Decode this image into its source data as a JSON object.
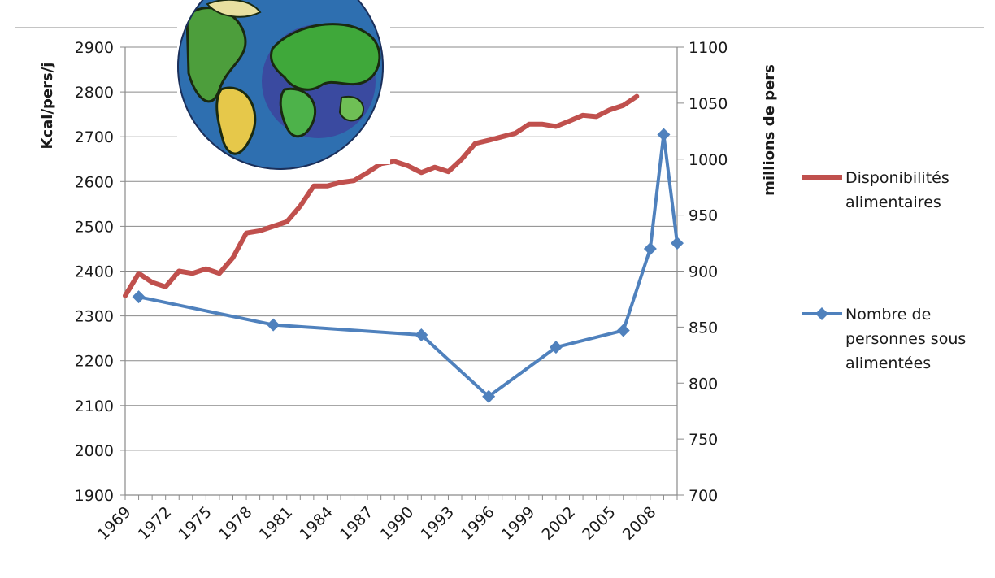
{
  "chart_data": {
    "type": "line",
    "x_ticks": [
      "1969",
      "1972",
      "1975",
      "1978",
      "1981",
      "1984",
      "1987",
      "1990",
      "1993",
      "1996",
      "1999",
      "2002",
      "2005",
      "2008"
    ],
    "xlim": [
      1969,
      2010
    ],
    "y_left": {
      "label": "Kcal/pers/j",
      "lim": [
        1900,
        2900
      ],
      "ticks": [
        "1900",
        "2000",
        "2100",
        "2200",
        "2300",
        "2400",
        "2500",
        "2600",
        "2700",
        "2800",
        "2900"
      ]
    },
    "y_right": {
      "label": "millions de pers",
      "lim": [
        700,
        1100
      ],
      "ticks": [
        "700",
        "750",
        "800",
        "850",
        "900",
        "950",
        "1000",
        "1050",
        "1100"
      ]
    },
    "grid": true,
    "legend_position": "right",
    "series": [
      {
        "name": "Disponibilités alimentaires",
        "axis": "left",
        "color": "#c0504d",
        "marker": "none",
        "x": [
          1969,
          1970,
          1971,
          1972,
          1973,
          1974,
          1975,
          1976,
          1977,
          1978,
          1979,
          1980,
          1981,
          1982,
          1983,
          1984,
          1985,
          1986,
          1987,
          1988,
          1989,
          1990,
          1991,
          1992,
          1993,
          1994,
          1995,
          1996,
          1997,
          1998,
          1999,
          2000,
          2001,
          2002,
          2003,
          2004,
          2005,
          2006,
          2007
        ],
        "y": [
          2345,
          2395,
          2375,
          2365,
          2400,
          2395,
          2405,
          2395,
          2430,
          2485,
          2490,
          2500,
          2510,
          2545,
          2590,
          2590,
          2598,
          2602,
          2620,
          2640,
          2645,
          2635,
          2620,
          2632,
          2622,
          2650,
          2685,
          2692,
          2700,
          2708,
          2728,
          2728,
          2723,
          2735,
          2748,
          2745,
          2760,
          2770,
          2790
        ]
      },
      {
        "name": "Nombre de personnes sous alimentées",
        "axis": "right",
        "color": "#4f81bd",
        "marker": "diamond",
        "x": [
          1970,
          1980,
          1991,
          1996,
          2001,
          2006,
          2008,
          2009,
          2010
        ],
        "y": [
          877,
          852,
          843,
          788,
          832,
          847,
          920,
          1022,
          925
        ]
      }
    ]
  },
  "legend": [
    {
      "lines": [
        "Disponibilités",
        "alimentaires"
      ],
      "color": "#c0504d",
      "marker": "none"
    },
    {
      "lines": [
        "Nombre de",
        "personnes sous",
        "alimentées"
      ],
      "color": "#4f81bd",
      "marker": "diamond"
    }
  ],
  "image": {
    "icon": "globe-image"
  }
}
